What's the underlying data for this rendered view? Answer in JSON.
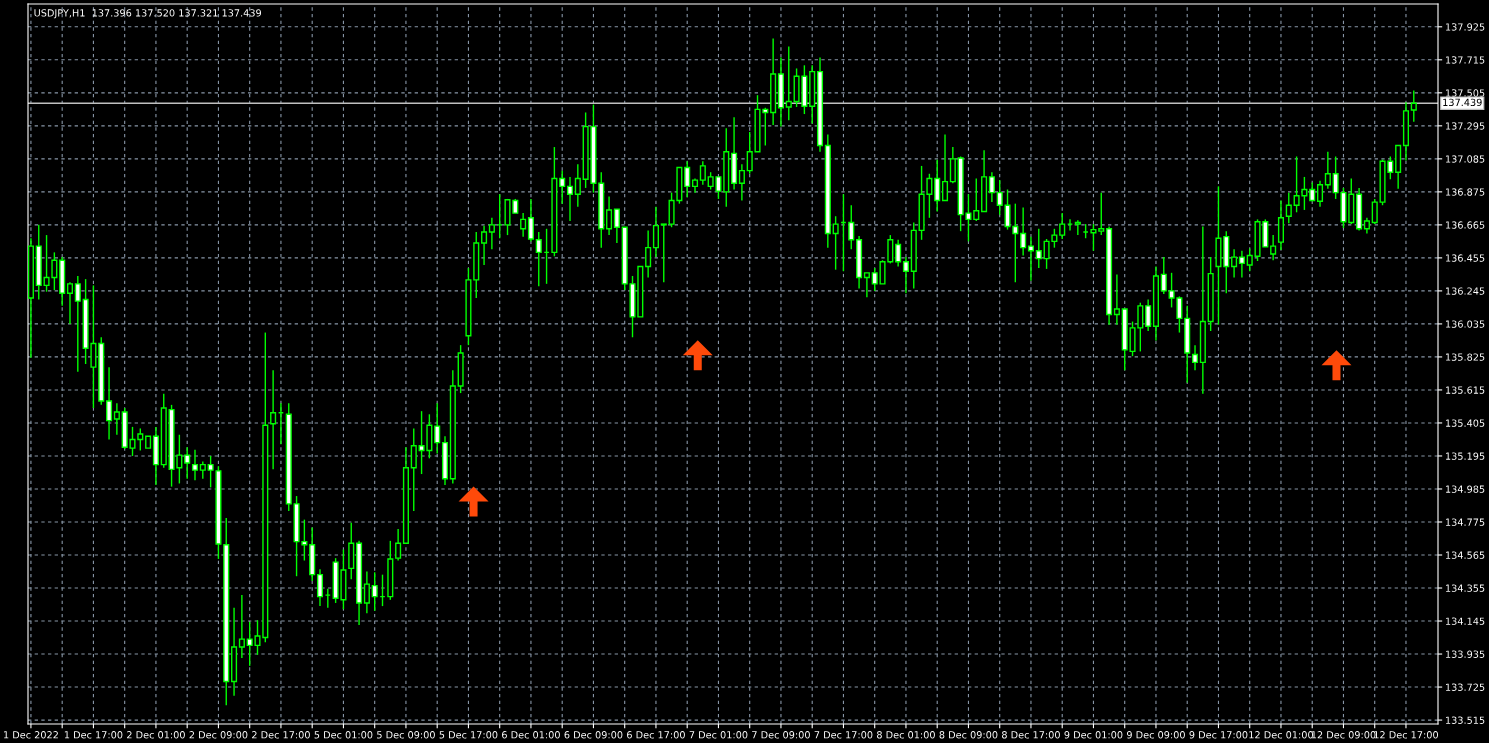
{
  "chart_data": {
    "type": "candlestick",
    "title": "USDJPY,H1  137.396 137.520 137.321 137.439",
    "categories": [
      "1 Dec 2022",
      null,
      null,
      null,
      null,
      null,
      null,
      null,
      "1 Dec 17:00",
      null,
      null,
      null,
      null,
      null,
      null,
      null,
      "2 Dec 01:00",
      null,
      null,
      null,
      null,
      null,
      null,
      null,
      "2 Dec 09:00",
      null,
      null,
      null,
      null,
      null,
      null,
      null,
      "2 Dec 17:00",
      null,
      null,
      null,
      null,
      null,
      null,
      null,
      "5 Dec 01:00",
      null,
      null,
      null,
      null,
      null,
      null,
      null,
      "5 Dec 09:00",
      null,
      null,
      null,
      null,
      null,
      null,
      null,
      "5 Dec 17:00",
      null,
      null,
      null,
      null,
      null,
      null,
      null,
      "6 Dec 01:00",
      null,
      null,
      null,
      null,
      null,
      null,
      null,
      "6 Dec 09:00",
      null,
      null,
      null,
      null,
      null,
      null,
      null,
      "6 Dec 17:00",
      null,
      null,
      null,
      null,
      null,
      null,
      null,
      "7 Dec 01:00",
      null,
      null,
      null,
      null,
      null,
      null,
      null,
      "7 Dec 09:00",
      null,
      null,
      null,
      null,
      null,
      null,
      null,
      "7 Dec 17:00",
      null,
      null,
      null,
      null,
      null,
      null,
      null,
      "8 Dec 01:00",
      null,
      null,
      null,
      null,
      null,
      null,
      null,
      "8 Dec 09:00",
      null,
      null,
      null,
      null,
      null,
      null,
      null,
      "8 Dec 17:00",
      null,
      null,
      null,
      null,
      null,
      null,
      null,
      "9 Dec 01:00",
      null,
      null,
      null,
      null,
      null,
      null,
      null,
      "9 Dec 09:00",
      null,
      null,
      null,
      null,
      null,
      null,
      null,
      "9 Dec 17:00",
      null,
      null,
      null,
      null,
      null,
      null,
      null,
      "12 Dec 01:00",
      null,
      null,
      null,
      null,
      null,
      null,
      null,
      "12 Dec 09:00",
      null,
      null,
      null,
      null,
      null,
      null,
      null,
      "12 Dec 17:00",
      null
    ],
    "ohlc": [
      [
        136.2,
        136.58,
        135.82,
        136.53
      ],
      [
        136.53,
        136.665,
        136.19,
        136.28
      ],
      [
        136.28,
        136.6,
        136.24,
        136.33
      ],
      [
        136.33,
        136.49,
        136.25,
        136.44
      ],
      [
        136.44,
        136.46,
        136.15,
        136.23
      ],
      [
        136.23,
        136.3,
        136.035,
        136.29
      ],
      [
        136.29,
        136.34,
        135.73,
        136.18
      ],
      [
        136.19,
        136.32,
        135.78,
        135.88
      ],
      [
        135.76,
        136.28,
        135.5,
        135.91
      ],
      [
        135.91,
        135.95,
        135.52,
        135.545
      ],
      [
        135.545,
        135.76,
        135.3,
        135.42
      ],
      [
        135.43,
        135.53,
        135.33,
        135.475
      ],
      [
        135.475,
        135.5,
        135.24,
        135.25
      ],
      [
        135.245,
        135.38,
        135.195,
        135.3
      ],
      [
        135.3,
        135.37,
        135.23,
        135.335
      ],
      [
        135.245,
        135.32,
        135.245,
        135.32
      ],
      [
        135.32,
        135.38,
        135.01,
        135.14
      ],
      [
        135.14,
        135.59,
        135.12,
        135.5
      ],
      [
        135.49,
        135.52,
        135.0,
        135.11
      ],
      [
        135.12,
        135.33,
        135.02,
        135.2
      ],
      [
        135.2,
        135.25,
        135.05,
        135.15
      ],
      [
        135.14,
        135.235,
        135.04,
        135.105
      ],
      [
        135.105,
        135.16,
        135.05,
        135.14
      ],
      [
        135.14,
        135.195,
        134.995,
        135.105
      ],
      [
        135.1,
        135.13,
        134.54,
        134.635
      ],
      [
        134.63,
        134.8,
        133.61,
        133.76
      ],
      [
        133.76,
        134.23,
        133.67,
        133.98
      ],
      [
        133.98,
        134.31,
        133.91,
        134.03
      ],
      [
        134.03,
        134.14,
        133.86,
        133.99
      ],
      [
        133.99,
        134.15,
        133.93,
        134.05
      ],
      [
        134.04,
        135.98,
        134.01,
        135.39
      ],
      [
        135.4,
        135.74,
        135.11,
        135.47
      ],
      [
        135.47,
        135.53,
        135.27,
        135.47
      ],
      [
        135.46,
        135.53,
        134.845,
        134.89
      ],
      [
        134.89,
        134.94,
        134.43,
        134.65
      ],
      [
        134.65,
        134.79,
        134.53,
        134.63
      ],
      [
        134.63,
        134.74,
        134.4,
        134.44
      ],
      [
        134.44,
        134.475,
        134.24,
        134.3
      ],
      [
        134.31,
        134.35,
        134.23,
        134.31
      ],
      [
        134.52,
        134.545,
        134.26,
        134.29
      ],
      [
        134.28,
        134.6,
        134.22,
        134.47
      ],
      [
        134.48,
        134.77,
        134.41,
        134.64
      ],
      [
        134.64,
        134.655,
        134.12,
        134.26
      ],
      [
        134.26,
        134.46,
        134.195,
        134.38
      ],
      [
        134.37,
        134.455,
        134.21,
        134.3
      ],
      [
        134.3,
        134.44,
        134.24,
        134.3
      ],
      [
        134.3,
        134.655,
        134.28,
        134.54
      ],
      [
        134.545,
        134.73,
        134.53,
        134.64
      ],
      [
        134.64,
        135.25,
        134.635,
        135.12
      ],
      [
        135.12,
        135.37,
        134.845,
        135.26
      ],
      [
        135.26,
        135.48,
        135.08,
        135.23
      ],
      [
        135.23,
        135.46,
        135.18,
        135.39
      ],
      [
        135.385,
        135.53,
        135.21,
        135.28
      ],
      [
        135.28,
        135.32,
        135.01,
        135.05
      ],
      [
        135.05,
        135.74,
        135.02,
        135.64
      ],
      [
        135.64,
        135.9,
        135.595,
        135.85
      ],
      [
        135.96,
        136.39,
        135.9,
        136.315
      ],
      [
        136.315,
        136.62,
        136.2,
        136.55
      ],
      [
        136.55,
        136.66,
        136.41,
        136.62
      ],
      [
        136.62,
        136.71,
        136.51,
        136.665
      ],
      [
        136.665,
        136.86,
        136.58,
        136.665
      ],
      [
        136.665,
        136.83,
        136.6,
        136.825
      ],
      [
        136.82,
        136.83,
        136.74,
        136.74
      ],
      [
        136.64,
        136.74,
        136.59,
        136.7
      ],
      [
        136.71,
        136.83,
        136.56,
        136.575
      ],
      [
        136.57,
        136.62,
        136.275,
        136.49
      ],
      [
        136.49,
        136.64,
        136.29,
        136.49
      ],
      [
        136.49,
        137.16,
        136.465,
        136.96
      ],
      [
        136.96,
        137.01,
        136.8,
        136.91
      ],
      [
        136.91,
        136.97,
        136.69,
        136.86
      ],
      [
        136.86,
        137.05,
        136.78,
        136.96
      ],
      [
        136.955,
        137.38,
        136.9,
        137.29
      ],
      [
        137.29,
        137.43,
        136.87,
        136.93
      ],
      [
        136.93,
        137.0,
        136.52,
        136.64
      ],
      [
        136.64,
        136.845,
        136.6,
        136.76
      ],
      [
        136.765,
        136.765,
        136.55,
        136.65
      ],
      [
        136.65,
        136.65,
        136.25,
        136.29
      ],
      [
        136.29,
        136.34,
        135.95,
        136.08
      ],
      [
        136.08,
        136.4,
        136.08,
        136.4
      ],
      [
        136.4,
        136.63,
        136.33,
        136.52
      ],
      [
        136.52,
        136.78,
        136.46,
        136.66
      ],
      [
        136.665,
        136.67,
        136.3,
        136.67
      ],
      [
        136.67,
        136.87,
        136.65,
        136.82
      ],
      [
        136.82,
        137.03,
        136.8,
        137.03
      ],
      [
        137.03,
        137.07,
        136.84,
        136.91
      ],
      [
        136.91,
        136.96,
        136.87,
        136.95
      ],
      [
        136.95,
        137.07,
        136.92,
        137.04
      ],
      [
        136.91,
        137.0,
        136.89,
        136.97
      ],
      [
        136.97,
        136.97,
        136.83,
        136.88
      ],
      [
        136.875,
        137.28,
        136.78,
        137.13
      ],
      [
        137.12,
        137.35,
        136.89,
        136.93
      ],
      [
        136.93,
        137.05,
        136.82,
        137.01
      ],
      [
        137.01,
        137.255,
        136.99,
        137.13
      ],
      [
        137.13,
        137.49,
        137.13,
        137.4
      ],
      [
        137.4,
        137.41,
        137.17,
        137.38
      ],
      [
        137.38,
        137.85,
        137.3,
        137.625
      ],
      [
        137.625,
        137.73,
        137.29,
        137.41
      ],
      [
        137.415,
        137.8,
        137.33,
        137.45
      ],
      [
        137.45,
        137.66,
        137.415,
        137.61
      ],
      [
        137.61,
        137.68,
        137.37,
        137.42
      ],
      [
        137.42,
        137.68,
        137.31,
        137.64
      ],
      [
        137.64,
        137.73,
        137.13,
        137.17
      ],
      [
        137.17,
        137.24,
        136.52,
        136.61
      ],
      [
        136.61,
        136.72,
        136.38,
        136.67
      ],
      [
        136.68,
        136.86,
        136.37,
        136.68
      ],
      [
        136.68,
        136.79,
        136.51,
        136.57
      ],
      [
        136.57,
        136.595,
        136.26,
        136.33
      ],
      [
        136.33,
        136.36,
        136.205,
        136.36
      ],
      [
        136.36,
        136.39,
        136.245,
        136.29
      ],
      [
        136.29,
        136.44,
        136.29,
        136.43
      ],
      [
        136.43,
        136.6,
        136.42,
        136.57
      ],
      [
        136.54,
        136.57,
        136.4,
        136.43
      ],
      [
        136.43,
        136.46,
        136.23,
        136.37
      ],
      [
        136.37,
        136.68,
        136.26,
        136.63
      ],
      [
        136.63,
        137.04,
        136.57,
        136.86
      ],
      [
        136.86,
        136.99,
        136.71,
        136.96
      ],
      [
        136.96,
        137.08,
        136.75,
        136.82
      ],
      [
        136.82,
        137.24,
        136.82,
        136.94
      ],
      [
        136.94,
        137.16,
        136.93,
        137.085
      ],
      [
        137.09,
        137.1,
        136.625,
        136.73
      ],
      [
        136.74,
        136.86,
        136.56,
        136.7
      ],
      [
        136.7,
        136.96,
        136.69,
        136.755
      ],
      [
        136.75,
        137.14,
        136.75,
        136.97
      ],
      [
        136.97,
        137.0,
        136.81,
        136.87
      ],
      [
        136.87,
        136.95,
        136.73,
        136.79
      ],
      [
        136.79,
        136.89,
        136.635,
        136.655
      ],
      [
        136.655,
        136.8,
        136.3,
        136.61
      ],
      [
        136.61,
        136.775,
        136.47,
        136.52
      ],
      [
        136.53,
        136.59,
        136.31,
        136.5
      ],
      [
        136.5,
        136.64,
        136.39,
        136.45
      ],
      [
        136.45,
        136.575,
        136.385,
        136.56
      ],
      [
        136.56,
        136.64,
        136.52,
        136.6
      ],
      [
        136.6,
        136.74,
        136.575,
        136.67
      ],
      [
        136.67,
        136.7,
        136.63,
        136.67
      ],
      [
        136.67,
        136.695,
        136.6,
        136.68
      ],
      [
        136.62,
        136.67,
        136.58,
        136.62
      ],
      [
        136.615,
        136.67,
        136.5,
        136.635
      ],
      [
        136.625,
        136.87,
        136.6,
        136.64
      ],
      [
        136.64,
        136.655,
        136.03,
        136.095
      ],
      [
        136.095,
        136.35,
        136.03,
        136.13
      ],
      [
        136.13,
        136.13,
        135.74,
        135.87
      ],
      [
        135.86,
        136.05,
        135.83,
        136.01
      ],
      [
        136.01,
        136.17,
        135.86,
        136.15
      ],
      [
        136.15,
        136.19,
        135.99,
        136.02
      ],
      [
        136.02,
        136.4,
        135.93,
        136.34
      ],
      [
        136.35,
        136.46,
        136.225,
        136.245
      ],
      [
        136.245,
        136.36,
        136.14,
        136.2
      ],
      [
        136.2,
        136.21,
        135.98,
        136.07
      ],
      [
        136.07,
        136.15,
        135.66,
        135.85
      ],
      [
        135.84,
        135.9,
        135.74,
        135.79
      ],
      [
        135.79,
        136.655,
        135.59,
        136.05
      ],
      [
        136.05,
        136.46,
        135.99,
        136.355
      ],
      [
        136.4,
        136.91,
        136.03,
        136.58
      ],
      [
        136.59,
        136.625,
        136.23,
        136.4
      ],
      [
        136.4,
        136.51,
        136.33,
        136.46
      ],
      [
        136.46,
        136.5,
        136.33,
        136.42
      ],
      [
        136.41,
        136.515,
        136.37,
        136.47
      ],
      [
        136.465,
        136.7,
        136.435,
        136.685
      ],
      [
        136.685,
        136.7,
        136.525,
        136.525
      ],
      [
        136.48,
        136.6,
        136.44,
        136.53
      ],
      [
        136.555,
        136.82,
        136.505,
        136.71
      ],
      [
        136.72,
        136.87,
        136.675,
        136.79
      ],
      [
        136.79,
        137.1,
        136.745,
        136.85
      ],
      [
        136.85,
        136.97,
        136.76,
        136.89
      ],
      [
        136.89,
        136.935,
        136.815,
        136.82
      ],
      [
        136.815,
        136.945,
        136.78,
        136.92
      ],
      [
        136.92,
        137.13,
        136.895,
        136.99
      ],
      [
        136.99,
        137.1,
        136.83,
        136.87
      ],
      [
        136.87,
        136.9,
        136.645,
        136.685
      ],
      [
        136.68,
        136.96,
        136.67,
        136.86
      ],
      [
        136.86,
        136.9,
        136.63,
        136.64
      ],
      [
        136.64,
        136.71,
        136.61,
        136.69
      ],
      [
        136.68,
        136.83,
        136.67,
        136.81
      ],
      [
        136.81,
        137.08,
        136.79,
        137.07
      ],
      [
        137.07,
        137.1,
        136.955,
        137.0
      ],
      [
        137.0,
        137.17,
        136.895,
        137.17
      ],
      [
        137.17,
        137.445,
        137.074,
        137.39
      ],
      [
        137.396,
        137.52,
        137.321,
        137.439
      ]
    ],
    "ylim": [
      133.49,
      138.07
    ],
    "yticks": [
      133.515,
      133.725,
      133.935,
      134.145,
      134.355,
      134.565,
      134.775,
      134.985,
      135.195,
      135.405,
      135.615,
      135.825,
      136.035,
      136.245,
      136.455,
      136.665,
      136.875,
      137.085,
      137.295,
      137.505,
      137.715,
      137.925
    ],
    "grid": true,
    "ref_lines": [
      {
        "axis": "y",
        "value": 137.439,
        "label": "137.439",
        "color": "#c0c0c0"
      }
    ]
  }
}
